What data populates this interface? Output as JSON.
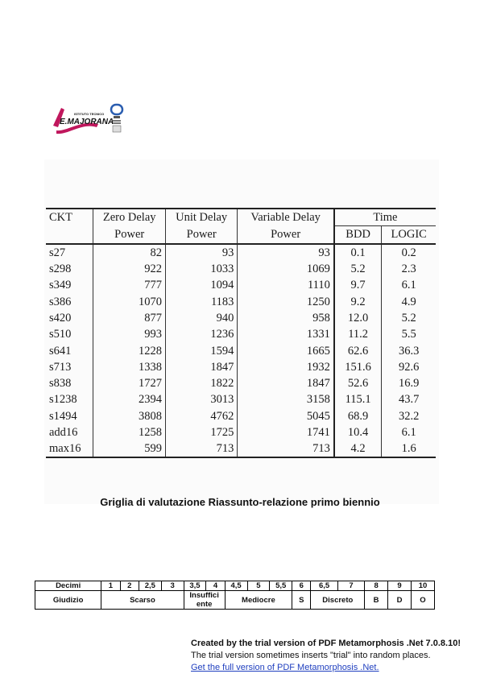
{
  "logo": {
    "text": "E.MAJORANA",
    "small_text": "ISTITUTO TECNICO"
  },
  "table": {
    "headers": {
      "ckt": "CKT",
      "zero_delay": [
        "Zero Delay",
        "Power"
      ],
      "unit_delay": [
        "Unit Delay",
        "Power"
      ],
      "variable_delay": [
        "Variable Delay",
        "Power"
      ],
      "time": "Time",
      "bdd": "BDD",
      "logic": "LOGIC"
    },
    "rows": [
      {
        "ckt": "s27",
        "zero": "82",
        "unit": "93",
        "variable": "93",
        "bdd": "0.1",
        "logic": "0.2"
      },
      {
        "ckt": "s298",
        "zero": "922",
        "unit": "1033",
        "variable": "1069",
        "bdd": "5.2",
        "logic": "2.3"
      },
      {
        "ckt": "s349",
        "zero": "777",
        "unit": "1094",
        "variable": "1110",
        "bdd": "9.7",
        "logic": "6.1"
      },
      {
        "ckt": "s386",
        "zero": "1070",
        "unit": "1183",
        "variable": "1250",
        "bdd": "9.2",
        "logic": "4.9"
      },
      {
        "ckt": "s420",
        "zero": "877",
        "unit": "940",
        "variable": "958",
        "bdd": "12.0",
        "logic": "5.2"
      },
      {
        "ckt": "s510",
        "zero": "993",
        "unit": "1236",
        "variable": "1331",
        "bdd": "11.2",
        "logic": "5.5"
      },
      {
        "ckt": "s641",
        "zero": "1228",
        "unit": "1594",
        "variable": "1665",
        "bdd": "62.6",
        "logic": "36.3"
      },
      {
        "ckt": "s713",
        "zero": "1338",
        "unit": "1847",
        "variable": "1932",
        "bdd": "151.6",
        "logic": "92.6"
      },
      {
        "ckt": "s838",
        "zero": "1727",
        "unit": "1822",
        "variable": "1847",
        "bdd": "52.6",
        "logic": "16.9"
      },
      {
        "ckt": "s1238",
        "zero": "2394",
        "unit": "3013",
        "variable": "3158",
        "bdd": "115.1",
        "logic": "43.7"
      },
      {
        "ckt": "s1494",
        "zero": "3808",
        "unit": "4762",
        "variable": "5045",
        "bdd": "68.9",
        "logic": "32.2"
      },
      {
        "ckt": "add16",
        "zero": "1258",
        "unit": "1725",
        "variable": "1741",
        "bdd": "10.4",
        "logic": "6.1"
      },
      {
        "ckt": "max16",
        "zero": "599",
        "unit": "713",
        "variable": "713",
        "bdd": "4.2",
        "logic": "1.6"
      }
    ]
  },
  "griglia_title": "Griglia di valutazione Riassunto-relazione primo biennio",
  "grid": {
    "decimi_label": "Decimi",
    "decimi": [
      "1",
      "2",
      "2,5",
      "3",
      "3,5",
      "4",
      "4,5",
      "5",
      "5,5",
      "6",
      "6,5",
      "7",
      "8",
      "9",
      "10"
    ],
    "giudizio_label": "Giudizio",
    "giudizio": {
      "scarso": "Scarso",
      "insufficiente": "Insuffici ente",
      "mediocre": "Mediocre",
      "s": "S",
      "discreto": "Discreto",
      "b": "B",
      "d": "D",
      "o": "O"
    }
  },
  "trial": {
    "line1": "Created by the trial version of PDF Metamorphosis .Net 7.0.8.10!",
    "line2": "The trial version sometimes inserts \"trial\" into random places.",
    "line3": "Get the full version of PDF Metamorphosis .Net."
  }
}
